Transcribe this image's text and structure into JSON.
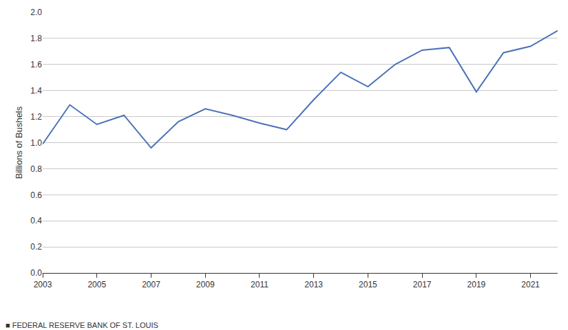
{
  "chart_data": {
    "type": "line",
    "y_label": "Billions of Bushels",
    "source": "■ FEDERAL RESERVE BANK OF ST. LOUIS",
    "x": [
      2003,
      2004,
      2005,
      2006,
      2007,
      2008,
      2009,
      2010,
      2011,
      2012,
      2013,
      2014,
      2015,
      2016,
      2017,
      2018,
      2019,
      2020,
      2021,
      2022
    ],
    "values": [
      0.99,
      1.29,
      1.14,
      1.21,
      0.96,
      1.16,
      1.26,
      1.21,
      1.15,
      1.1,
      1.33,
      1.54,
      1.43,
      1.6,
      1.71,
      1.73,
      1.39,
      1.69,
      1.74,
      1.86
    ],
    "color": "#4a72b8",
    "xlim": [
      2003,
      2022
    ],
    "xticks": [
      2003,
      2005,
      2007,
      2009,
      2011,
      2013,
      2015,
      2017,
      2019,
      2021
    ],
    "ylim": [
      0,
      2
    ],
    "yticks": [
      {
        "value": 0,
        "label": "0.0"
      },
      0.2,
      0.4,
      0.6,
      0.8,
      {
        "value": 1,
        "label": "1.0"
      },
      1.2,
      1.4,
      1.6,
      1.8,
      {
        "value": 2,
        "label": "2.0"
      }
    ],
    "grid": true
  }
}
